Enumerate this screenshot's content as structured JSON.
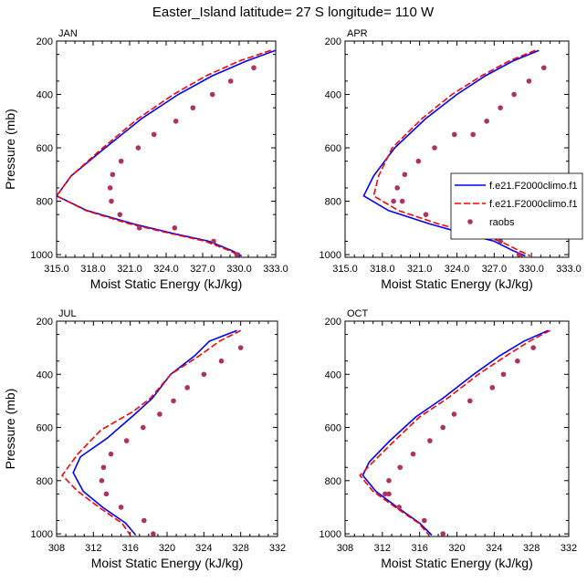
{
  "title": "Easter_Island  latitude= 27 S longitude= 110 W",
  "legend": {
    "items": [
      {
        "label": "f.e21.F2000climo.f1",
        "style": "solid",
        "color": "#0000ff"
      },
      {
        "label": "f.e21.F2000climo.f1",
        "style": "dashed",
        "color": "#ff0000"
      },
      {
        "label": "raobs",
        "style": "marker",
        "color": "#b03060"
      }
    ]
  },
  "colors": {
    "model1": "#0000ff",
    "model2": "#ff0000",
    "raobs": "#b03060"
  },
  "chart_data": [
    {
      "type": "line",
      "panel": "JAN",
      "xlabel": "Moist Static Energy (kJ/kg)",
      "ylabel": "Pressure (mb)",
      "xlim": [
        315.0,
        333.0
      ],
      "ylim": [
        200,
        1010
      ],
      "y_inverted": true,
      "xticks": [
        315.0,
        318.0,
        321.0,
        324.0,
        327.0,
        330.0,
        333.0
      ],
      "xtick_labels": [
        "315.0",
        "318.0",
        "321.0",
        "324.0",
        "327.0",
        "330.0",
        "333.0"
      ],
      "yticks": [
        200,
        400,
        600,
        800,
        1000
      ],
      "series": [
        {
          "name": "f.e21.F2000climo.f1",
          "style": "solid",
          "color": "#0000ff",
          "x": [
            333.0,
            330.6,
            327.8,
            325.0,
            322.0,
            319.0,
            316.2,
            315.0,
            317.5,
            321.3,
            324.5,
            327.5,
            329.4,
            330.2
          ],
          "y": [
            235,
            275,
            330,
            400,
            490,
            600,
            705,
            780,
            835,
            885,
            920,
            950,
            985,
            1005
          ]
        },
        {
          "name": "f.e21.F2000climo.f1",
          "style": "dashed",
          "color": "#ff0000",
          "x": [
            332.6,
            330.0,
            327.3,
            324.6,
            321.7,
            318.8,
            316.2,
            315.0,
            317.4,
            321.0,
            324.3,
            327.2,
            329.2,
            330.1
          ],
          "y": [
            235,
            275,
            330,
            400,
            490,
            600,
            705,
            780,
            835,
            885,
            920,
            950,
            985,
            1005
          ]
        },
        {
          "name": "raobs",
          "style": "marker",
          "color": "#b03060",
          "x": [
            331.2,
            329.3,
            327.8,
            326.2,
            324.8,
            323.0,
            321.7,
            320.3,
            319.6,
            319.4,
            319.5,
            320.2,
            321.8,
            324.7,
            327.9,
            329.8
          ],
          "y": [
            300,
            350,
            400,
            450,
            500,
            550,
            600,
            650,
            700,
            750,
            800,
            850,
            900,
            900,
            950,
            1000
          ]
        }
      ]
    },
    {
      "type": "line",
      "panel": "APR",
      "xlabel": "Moist Static Energy (kJ/kg)",
      "ylabel": "Pressure (mb)",
      "xlim": [
        315.0,
        333.0
      ],
      "ylim": [
        200,
        1010
      ],
      "y_inverted": true,
      "xticks": [
        315.0,
        318.0,
        321.0,
        324.0,
        327.0,
        330.0,
        333.0
      ],
      "xtick_labels": [
        "315.0",
        "318.0",
        "321.0",
        "324.0",
        "327.0",
        "330.0",
        "333.0"
      ],
      "yticks": [
        200,
        400,
        600,
        800,
        1000
      ],
      "series": [
        {
          "name": "f.e21.F2000climo.f1",
          "style": "solid",
          "color": "#0000ff",
          "x": [
            330.6,
            328.5,
            326.3,
            324.0,
            321.5,
            319.0,
            317.3,
            316.5,
            318.5,
            321.8,
            324.5,
            327.0,
            328.5,
            329.5
          ],
          "y": [
            235,
            275,
            330,
            400,
            490,
            600,
            705,
            780,
            835,
            885,
            920,
            950,
            985,
            1005
          ]
        },
        {
          "name": "f.e21.F2000climo.f1",
          "style": "dashed",
          "color": "#ff0000",
          "x": [
            330.3,
            328.2,
            326.0,
            323.6,
            321.2,
            318.8,
            317.7,
            317.3,
            319.3,
            322.5,
            325.3,
            327.5,
            329.0,
            329.9
          ],
          "y": [
            235,
            275,
            330,
            400,
            490,
            600,
            705,
            780,
            835,
            885,
            920,
            950,
            985,
            1005
          ]
        },
        {
          "name": "raobs",
          "style": "marker",
          "color": "#b03060",
          "x": [
            331.0,
            329.8,
            328.6,
            327.5,
            326.4,
            325.3,
            323.8,
            322.2,
            320.9,
            319.8,
            319.2,
            318.9,
            319.6,
            321.5,
            324.5,
            327.5,
            329.0
          ],
          "y": [
            300,
            350,
            400,
            450,
            500,
            550,
            550,
            600,
            650,
            700,
            750,
            800,
            800,
            850,
            900,
            950,
            1000
          ]
        }
      ]
    },
    {
      "type": "line",
      "panel": "JUL",
      "xlabel": "Moist Static Energy (kJ/kg)",
      "ylabel": "Pressure (mb)",
      "xlim": [
        308,
        332
      ],
      "ylim": [
        200,
        1010
      ],
      "y_inverted": true,
      "xticks": [
        308,
        312,
        316,
        320,
        324,
        328,
        332
      ],
      "xtick_labels": [
        "308",
        "312",
        "316",
        "320",
        "324",
        "328",
        "332"
      ],
      "yticks": [
        200,
        400,
        600,
        800,
        1000
      ],
      "series": [
        {
          "name": "f.e21.F2000climo.f1",
          "style": "solid",
          "color": "#0000ff",
          "x": [
            327.6,
            324.6,
            323.0,
            320.4,
            318.4,
            316.5,
            313.5,
            310.6,
            309.8,
            310.9,
            313.0,
            315.5,
            316.6
          ],
          "y": [
            235,
            275,
            330,
            400,
            490,
            550,
            640,
            710,
            770,
            840,
            900,
            960,
            1005
          ]
        },
        {
          "name": "f.e21.F2000climo.f1",
          "style": "dashed",
          "color": "#ff0000",
          "x": [
            328.0,
            325.7,
            323.5,
            320.4,
            318.2,
            316.3,
            312.8,
            310.3,
            308.6,
            310.3,
            312.6,
            315.1,
            316.0
          ],
          "y": [
            235,
            275,
            330,
            400,
            490,
            540,
            610,
            700,
            780,
            840,
            900,
            960,
            1005
          ]
        },
        {
          "name": "raobs",
          "style": "marker",
          "color": "#b03060",
          "x": [
            328.0,
            325.9,
            324.0,
            322.2,
            320.7,
            319.2,
            317.4,
            315.6,
            313.9,
            313.1,
            312.9,
            313.4,
            315.0,
            317.5,
            318.5
          ],
          "y": [
            300,
            350,
            400,
            450,
            500,
            550,
            600,
            650,
            700,
            750,
            800,
            850,
            900,
            950,
            1000
          ]
        }
      ]
    },
    {
      "type": "line",
      "panel": "OCT",
      "xlabel": "Moist Static Energy (kJ/kg)",
      "ylabel": "Pressure (mb)",
      "xlim": [
        308,
        332
      ],
      "ylim": [
        200,
        1010
      ],
      "y_inverted": true,
      "xticks": [
        308,
        312,
        316,
        320,
        324,
        328,
        332
      ],
      "xtick_labels": [
        "308",
        "312",
        "316",
        "320",
        "324",
        "328",
        "332"
      ],
      "yticks": [
        200,
        400,
        600,
        800,
        1000
      ],
      "series": [
        {
          "name": "f.e21.F2000climo.f1",
          "style": "solid",
          "color": "#0000ff",
          "x": [
            329.8,
            327.2,
            324.6,
            321.8,
            318.5,
            315.6,
            312.8,
            310.6,
            309.9,
            311.3,
            313.6,
            316.0,
            317.3
          ],
          "y": [
            235,
            275,
            330,
            400,
            490,
            560,
            650,
            730,
            780,
            840,
            900,
            960,
            1005
          ]
        },
        {
          "name": "f.e21.F2000climo.f1",
          "style": "dashed",
          "color": "#ff0000",
          "x": [
            330.0,
            327.8,
            325.3,
            322.3,
            319.0,
            316.0,
            313.3,
            311.0,
            309.6,
            311.0,
            313.4,
            315.9,
            317.0
          ],
          "y": [
            235,
            275,
            330,
            400,
            490,
            560,
            650,
            730,
            780,
            840,
            900,
            960,
            1005
          ]
        },
        {
          "name": "raobs",
          "style": "marker",
          "color": "#b03060",
          "x": [
            328.2,
            326.5,
            325.0,
            323.8,
            321.4,
            319.7,
            318.5,
            317.1,
            315.3,
            313.9,
            312.7,
            312.3,
            312.7,
            313.8,
            316.5,
            318.5
          ],
          "y": [
            300,
            350,
            400,
            450,
            500,
            550,
            600,
            650,
            700,
            750,
            800,
            850,
            850,
            900,
            950,
            1000
          ]
        }
      ]
    }
  ]
}
